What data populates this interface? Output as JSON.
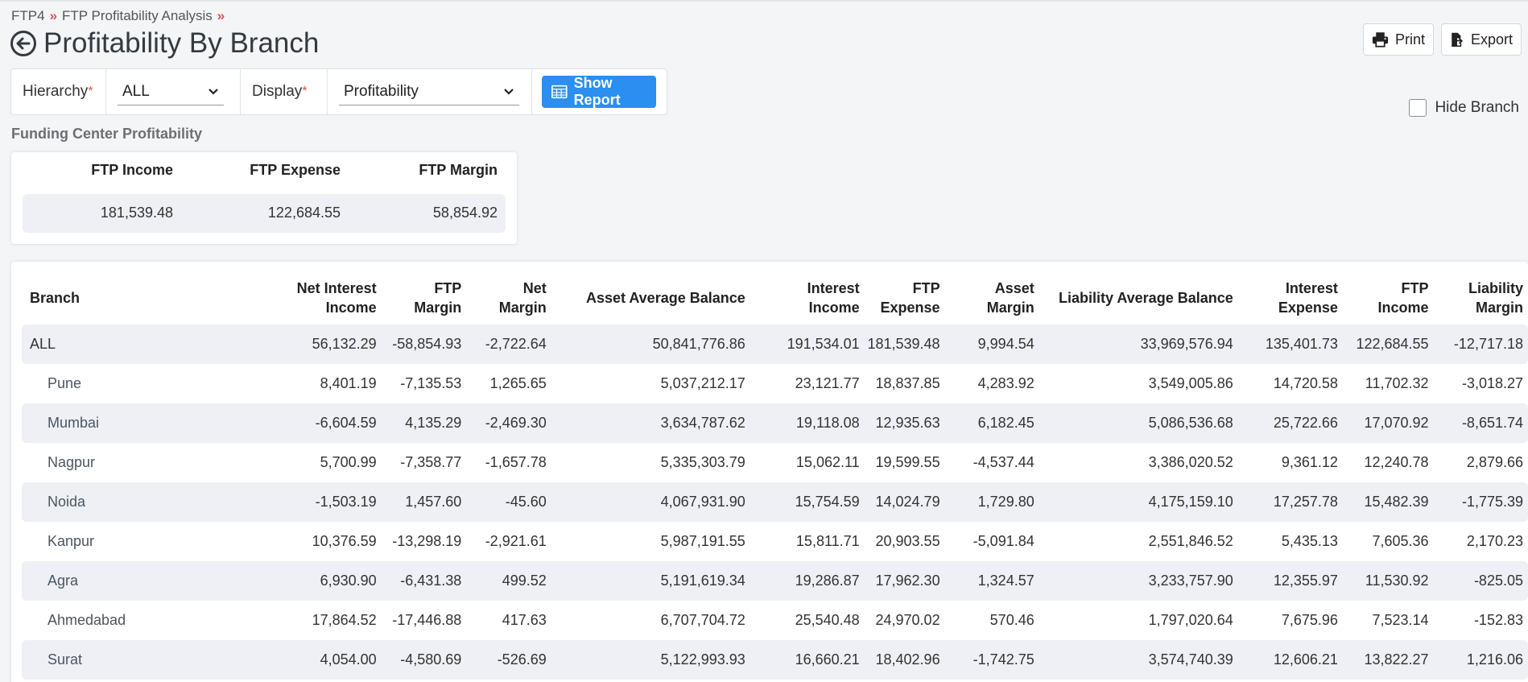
{
  "breadcrumb": {
    "item1": "FTP4",
    "item2": "FTP Profitability Analysis",
    "separator": "»"
  },
  "page": {
    "title": "Profitability By Branch",
    "back_icon": "arrow-left-circle-icon"
  },
  "toolbar": {
    "print_label": "Print",
    "export_label": "Export"
  },
  "filters": {
    "hierarchy_label": "Hierarchy",
    "hierarchy_value": "ALL",
    "display_label": "Display",
    "display_value": "Profitability",
    "required_mark": "*",
    "show_report_label": "Show Report"
  },
  "hide_branch": {
    "label": "Hide Branch",
    "checked": false
  },
  "funding_center": {
    "title": "Funding Center Profitability",
    "headers": [
      "FTP Income",
      "FTP Expense",
      "FTP Margin"
    ],
    "values": [
      "181,539.48",
      "122,684.55",
      "58,854.92"
    ]
  },
  "table": {
    "headers": [
      {
        "line1": "Branch",
        "line2": ""
      },
      {
        "line1": "Net Interest",
        "line2": "Income"
      },
      {
        "line1": "FTP",
        "line2": "Margin"
      },
      {
        "line1": "Net",
        "line2": "Margin"
      },
      {
        "line1": "Asset Average Balance",
        "line2": ""
      },
      {
        "line1": "Interest",
        "line2": "Income"
      },
      {
        "line1": "FTP",
        "line2": "Expense"
      },
      {
        "line1": "Asset",
        "line2": "Margin"
      },
      {
        "line1": "Liability Average Balance",
        "line2": ""
      },
      {
        "line1": "Interest",
        "line2": "Expense"
      },
      {
        "line1": "FTP",
        "line2": "Income"
      },
      {
        "line1": "Liability",
        "line2": "Margin"
      }
    ],
    "rows": [
      [
        "ALL",
        "56,132.29",
        "-58,854.93",
        "-2,722.64",
        "50,841,776.86",
        "191,534.01",
        "181,539.48",
        "9,994.54",
        "33,969,576.94",
        "135,401.73",
        "122,684.55",
        "-12,717.18"
      ],
      [
        "Pune",
        "8,401.19",
        "-7,135.53",
        "1,265.65",
        "5,037,212.17",
        "23,121.77",
        "18,837.85",
        "4,283.92",
        "3,549,005.86",
        "14,720.58",
        "11,702.32",
        "-3,018.27"
      ],
      [
        "Mumbai",
        "-6,604.59",
        "4,135.29",
        "-2,469.30",
        "3,634,787.62",
        "19,118.08",
        "12,935.63",
        "6,182.45",
        "5,086,536.68",
        "25,722.66",
        "17,070.92",
        "-8,651.74"
      ],
      [
        "Nagpur",
        "5,700.99",
        "-7,358.77",
        "-1,657.78",
        "5,335,303.79",
        "15,062.11",
        "19,599.55",
        "-4,537.44",
        "3,386,020.52",
        "9,361.12",
        "12,240.78",
        "2,879.66"
      ],
      [
        "Noida",
        "-1,503.19",
        "1,457.60",
        "-45.60",
        "4,067,931.90",
        "15,754.59",
        "14,024.79",
        "1,729.80",
        "4,175,159.10",
        "17,257.78",
        "15,482.39",
        "-1,775.39"
      ],
      [
        "Kanpur",
        "10,376.59",
        "-13,298.19",
        "-2,921.61",
        "5,987,191.55",
        "15,811.71",
        "20,903.55",
        "-5,091.84",
        "2,551,846.52",
        "5,435.13",
        "7,605.36",
        "2,170.23"
      ],
      [
        "Agra",
        "6,930.90",
        "-6,431.38",
        "499.52",
        "5,191,619.34",
        "19,286.87",
        "17,962.30",
        "1,324.57",
        "3,233,757.90",
        "12,355.97",
        "11,530.92",
        "-825.05"
      ],
      [
        "Ahmedabad",
        "17,864.52",
        "-17,446.88",
        "417.63",
        "6,707,704.72",
        "25,540.48",
        "24,970.02",
        "570.46",
        "1,797,020.64",
        "7,675.96",
        "7,523.14",
        "-152.83"
      ],
      [
        "Surat",
        "4,054.00",
        "-4,580.69",
        "-526.69",
        "5,122,993.93",
        "16,660.21",
        "18,402.96",
        "-1,742.75",
        "3,574,740.39",
        "12,606.21",
        "13,822.27",
        "1,216.06"
      ]
    ]
  }
}
